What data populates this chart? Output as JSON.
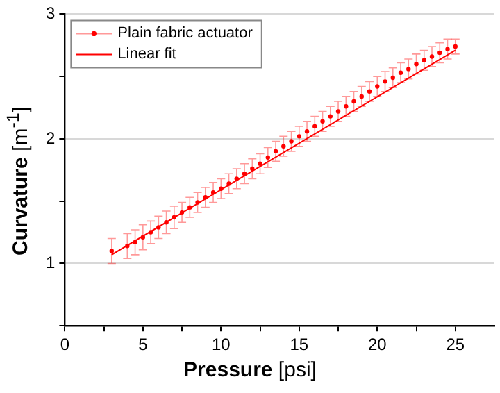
{
  "chart_data": {
    "type": "scatter",
    "xlabel": "Pressure [psi]",
    "ylabel": "Curvature [m$^{-1}$]",
    "xlim": [
      0,
      27.5
    ],
    "xticks": [
      0,
      {
        "value": 2.5,
        "label": null
      },
      5,
      {
        "value": 7.5,
        "label": null
      },
      10,
      {
        "value": 12.5,
        "label": null
      },
      15,
      {
        "value": 17.5,
        "label": null
      },
      20,
      {
        "value": 22.5,
        "label": null
      },
      25
    ],
    "ylim": [
      0.5,
      3
    ],
    "yticks": [
      {
        "value": 0.5,
        "label": null
      },
      1,
      {
        "value": 1.5,
        "label": null
      },
      2,
      {
        "value": 2.5,
        "label": null
      },
      3
    ],
    "grid": "y",
    "legend": "top left",
    "series": [
      {
        "name": "Plain fabric actuator",
        "color": "#ff0000",
        "marker": "circle",
        "x": [
          3,
          4,
          4.5,
          5,
          5.5,
          6,
          6.5,
          7,
          7.5,
          8,
          8.5,
          9,
          9.5,
          10,
          10.5,
          11,
          11.5,
          12,
          12.5,
          13,
          13.5,
          14,
          14.5,
          15,
          15.5,
          16,
          16.5,
          17,
          17.5,
          18,
          18.5,
          19,
          19.5,
          20,
          20.5,
          21,
          21.5,
          22,
          22.5,
          23,
          23.5,
          24,
          24.5,
          25
        ],
        "values": [
          1.1,
          1.14,
          1.17,
          1.21,
          1.25,
          1.29,
          1.33,
          1.37,
          1.41,
          1.45,
          1.49,
          1.53,
          1.57,
          1.6,
          1.64,
          1.68,
          1.72,
          1.76,
          1.8,
          1.85,
          1.9,
          1.94,
          1.98,
          2.02,
          2.06,
          2.1,
          2.14,
          2.18,
          2.22,
          2.26,
          2.3,
          2.34,
          2.38,
          2.42,
          2.46,
          2.49,
          2.53,
          2.56,
          2.6,
          2.63,
          2.66,
          2.69,
          2.72,
          2.74
        ],
        "errors": [
          0.1,
          0.1,
          0.1,
          0.1,
          0.09,
          0.09,
          0.09,
          0.09,
          0.08,
          0.08,
          0.08,
          0.08,
          0.08,
          0.08,
          0.08,
          0.08,
          0.08,
          0.08,
          0.08,
          0.08,
          0.08,
          0.08,
          0.08,
          0.08,
          0.08,
          0.08,
          0.08,
          0.08,
          0.08,
          0.08,
          0.08,
          0.08,
          0.08,
          0.08,
          0.08,
          0.08,
          0.08,
          0.08,
          0.08,
          0.08,
          0.08,
          0.08,
          0.08,
          0.06
        ]
      },
      {
        "name": "Linear fit",
        "type": "line",
        "color": "#ff0000",
        "marker": "none",
        "x": [
          3,
          25
        ],
        "values": [
          1.07,
          2.71
        ]
      }
    ]
  }
}
